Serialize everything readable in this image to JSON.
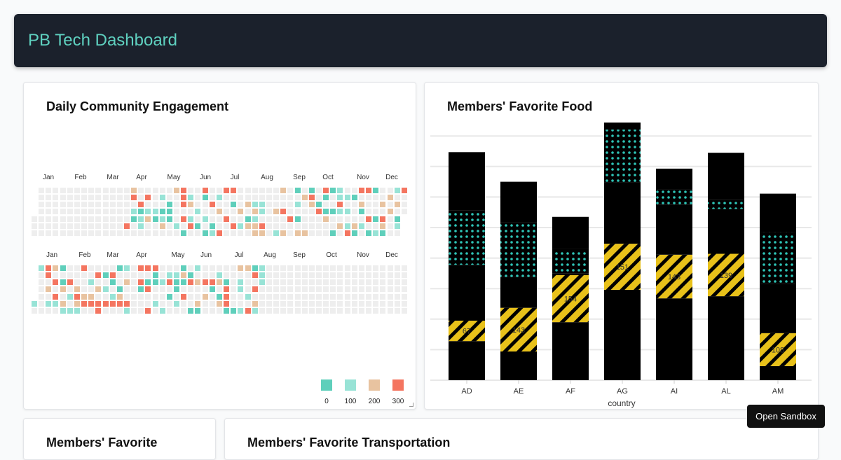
{
  "header": {
    "title": "PB Tech Dashboard"
  },
  "engagement": {
    "title": "Daily Community Engagement",
    "months": [
      "Jan",
      "Feb",
      "Mar",
      "Apr",
      "May",
      "Jun",
      "Jul",
      "Aug",
      "Sep",
      "Oct",
      "Nov",
      "Dec"
    ],
    "legend": {
      "values": [
        "0",
        "100",
        "200",
        "300"
      ],
      "colors": [
        "#5fcfbb",
        "#98e3d6",
        "#e8c3a0",
        "#f47560"
      ]
    },
    "empty_color": "#eeeeee",
    "years": [
      {
        "rows": [
          [
            [
              14,
              200
            ],
            [
              20,
              200
            ],
            [
              21,
              300
            ],
            [
              24,
              300
            ],
            [
              27,
              300
            ],
            [
              28,
              300
            ],
            [
              35,
              200
            ],
            [
              37,
              0
            ],
            [
              39,
              0
            ],
            [
              41,
              300
            ],
            [
              42,
              0
            ],
            [
              43,
              100
            ],
            [
              46,
              300
            ],
            [
              47,
              300
            ],
            [
              48,
              0
            ],
            [
              51,
              100
            ],
            [
              52,
              300
            ]
          ],
          [
            [
              14,
              300
            ],
            [
              16,
              300
            ],
            [
              18,
              100
            ],
            [
              21,
              300
            ],
            [
              22,
              100
            ],
            [
              24,
              0
            ],
            [
              26,
              100
            ],
            [
              38,
              200
            ],
            [
              39,
              300
            ],
            [
              41,
              0
            ],
            [
              43,
              100
            ],
            [
              44,
              100
            ],
            [
              45,
              0
            ],
            [
              50,
              200
            ]
          ],
          [
            [
              15,
              300
            ],
            [
              19,
              0
            ],
            [
              21,
              300
            ],
            [
              22,
              200
            ],
            [
              25,
              300
            ],
            [
              28,
              0
            ],
            [
              30,
              200
            ],
            [
              31,
              100
            ],
            [
              32,
              100
            ],
            [
              37,
              100
            ],
            [
              39,
              200
            ],
            [
              40,
              0
            ],
            [
              43,
              300
            ],
            [
              46,
              200
            ],
            [
              49,
              200
            ],
            [
              51,
              200
            ]
          ],
          [
            [
              14,
              100
            ],
            [
              15,
              0
            ],
            [
              16,
              100
            ],
            [
              17,
              100
            ],
            [
              18,
              0
            ],
            [
              19,
              0
            ],
            [
              23,
              100
            ],
            [
              26,
              200
            ],
            [
              29,
              200
            ],
            [
              31,
              200
            ],
            [
              32,
              100
            ],
            [
              34,
              200
            ],
            [
              35,
              300
            ],
            [
              40,
              300
            ],
            [
              41,
              0
            ],
            [
              42,
              0
            ],
            [
              43,
              100
            ],
            [
              44,
              100
            ],
            [
              46,
              0
            ],
            [
              50,
              200
            ]
          ],
          [
            [
              14,
              0
            ],
            [
              15,
              100
            ],
            [
              16,
              200
            ],
            [
              17,
              0
            ],
            [
              18,
              100
            ],
            [
              19,
              0
            ],
            [
              21,
              300
            ],
            [
              22,
              100
            ],
            [
              24,
              100
            ],
            [
              27,
              300
            ],
            [
              30,
              0
            ],
            [
              31,
              100
            ],
            [
              36,
              300
            ],
            [
              37,
              0
            ],
            [
              41,
              200
            ],
            [
              47,
              300
            ],
            [
              48,
              0
            ],
            [
              49,
              300
            ],
            [
              51,
              0
            ]
          ],
          [
            [
              13,
              300
            ],
            [
              15,
              100
            ],
            [
              18,
              200
            ],
            [
              20,
              100
            ],
            [
              22,
              300
            ],
            [
              23,
              0
            ],
            [
              25,
              0
            ],
            [
              28,
              300
            ],
            [
              29,
              100
            ],
            [
              30,
              200
            ],
            [
              31,
              200
            ],
            [
              32,
              300
            ],
            [
              43,
              200
            ],
            [
              44,
              100
            ],
            [
              45,
              200
            ],
            [
              46,
              100
            ],
            [
              49,
              200
            ],
            [
              51,
              100
            ]
          ],
          [
            [
              21,
              0
            ],
            [
              24,
              0
            ],
            [
              25,
              100
            ],
            [
              26,
              300
            ],
            [
              31,
              200
            ],
            [
              32,
              200
            ],
            [
              34,
              100
            ],
            [
              35,
              200
            ],
            [
              37,
              200
            ],
            [
              38,
              200
            ],
            [
              42,
              0
            ],
            [
              44,
              300
            ],
            [
              45,
              0
            ],
            [
              47,
              0
            ],
            [
              48,
              100
            ],
            [
              49,
              0
            ]
          ]
        ]
      },
      {
        "rows": [
          [
            [
              1,
              100
            ],
            [
              2,
              300
            ],
            [
              3,
              200
            ],
            [
              4,
              0
            ],
            [
              7,
              300
            ],
            [
              12,
              0
            ],
            [
              13,
              100
            ],
            [
              15,
              300
            ],
            [
              16,
              300
            ],
            [
              17,
              300
            ],
            [
              21,
              0
            ],
            [
              23,
              100
            ],
            [
              29,
              200
            ],
            [
              30,
              200
            ],
            [
              31,
              0
            ],
            [
              32,
              100
            ]
          ],
          [
            [
              2,
              300
            ],
            [
              9,
              300
            ],
            [
              10,
              0
            ],
            [
              11,
              300
            ],
            [
              17,
              0
            ],
            [
              19,
              100
            ],
            [
              20,
              100
            ],
            [
              21,
              200
            ],
            [
              22,
              0
            ],
            [
              26,
              100
            ],
            [
              31,
              300
            ],
            [
              32,
              100
            ]
          ],
          [
            [
              3,
              300
            ],
            [
              4,
              0
            ],
            [
              5,
              300
            ],
            [
              8,
              100
            ],
            [
              11,
              0
            ],
            [
              13,
              200
            ],
            [
              15,
              300
            ],
            [
              16,
              0
            ],
            [
              17,
              0
            ],
            [
              18,
              100
            ],
            [
              19,
              300
            ],
            [
              20,
              0
            ],
            [
              21,
              0
            ],
            [
              22,
              300
            ],
            [
              23,
              200
            ],
            [
              24,
              300
            ],
            [
              25,
              300
            ],
            [
              26,
              200
            ],
            [
              27,
              0
            ],
            [
              29,
              100
            ],
            [
              32,
              100
            ]
          ],
          [
            [
              2,
              200
            ],
            [
              4,
              200
            ],
            [
              6,
              200
            ],
            [
              9,
              200
            ],
            [
              10,
              100
            ],
            [
              12,
              0
            ],
            [
              15,
              0
            ],
            [
              16,
              300
            ],
            [
              20,
              0
            ],
            [
              25,
              0
            ],
            [
              27,
              300
            ],
            [
              29,
              100
            ],
            [
              31,
              300
            ]
          ],
          [
            [
              3,
              300
            ],
            [
              5,
              100
            ],
            [
              6,
              300
            ],
            [
              7,
              200
            ],
            [
              8,
              200
            ],
            [
              11,
              100
            ],
            [
              12,
              200
            ],
            [
              19,
              0
            ],
            [
              21,
              300
            ],
            [
              24,
              200
            ],
            [
              26,
              0
            ],
            [
              27,
              300
            ],
            [
              30,
              100
            ]
          ],
          [
            [
              0,
              100
            ],
            [
              2,
              100
            ],
            [
              3,
              100
            ],
            [
              4,
              200
            ],
            [
              6,
              200
            ],
            [
              7,
              300
            ],
            [
              8,
              300
            ],
            [
              9,
              300
            ],
            [
              10,
              300
            ],
            [
              11,
              300
            ],
            [
              12,
              300
            ],
            [
              13,
              300
            ],
            [
              17,
              100
            ],
            [
              20,
              100
            ],
            [
              23,
              200
            ],
            [
              26,
              200
            ],
            [
              27,
              300
            ],
            [
              31,
              200
            ]
          ],
          [
            [
              4,
              100
            ],
            [
              5,
              100
            ],
            [
              6,
              100
            ],
            [
              9,
              300
            ],
            [
              13,
              100
            ],
            [
              16,
              300
            ],
            [
              18,
              100
            ],
            [
              22,
              0
            ],
            [
              23,
              0
            ],
            [
              27,
              0
            ],
            [
              28,
              0
            ],
            [
              29,
              100
            ],
            [
              30,
              300
            ],
            [
              31,
              100
            ]
          ]
        ]
      }
    ]
  },
  "food": {
    "title": "Members' Favorite Food",
    "chart_data": {
      "type": "bar",
      "stacked": true,
      "categories": [
        "AD",
        "AE",
        "AF",
        "AG",
        "AI",
        "AL",
        "AM"
      ],
      "xlabel": "country",
      "ylabel": "",
      "ylim": [
        0,
        850
      ],
      "grid": true,
      "series": [
        {
          "values": [
            128,
            94,
            190,
            296,
            268,
            275,
            46
          ],
          "color": "#000000",
          "pattern": "solid"
        },
        {
          "values": [
            67,
            143,
            154,
            151,
            143,
            139,
            108
          ],
          "color": "#e8c11a",
          "pattern": "lines",
          "labels": [
            "67",
            "143",
            "154",
            "151",
            "143",
            "139",
            "108"
          ]
        },
        {
          "values": [
            183,
            101,
            5,
            200,
            163,
            147,
            161
          ],
          "color": "#000000",
          "pattern": "solid"
        },
        {
          "values": [
            179,
            179,
            80,
            174,
            50,
            30,
            170
          ],
          "color": "#2ec4b6",
          "pattern": "dots"
        },
        {
          "values": [
            190,
            133,
            106,
            23,
            69,
            154,
            126
          ],
          "color": "#000000",
          "pattern": "solid"
        }
      ]
    }
  },
  "bottom": {
    "card1_title": "Members' Favorite",
    "card2_title": "Members' Favorite Transportation"
  },
  "sandbox_label": "Open Sandbox"
}
